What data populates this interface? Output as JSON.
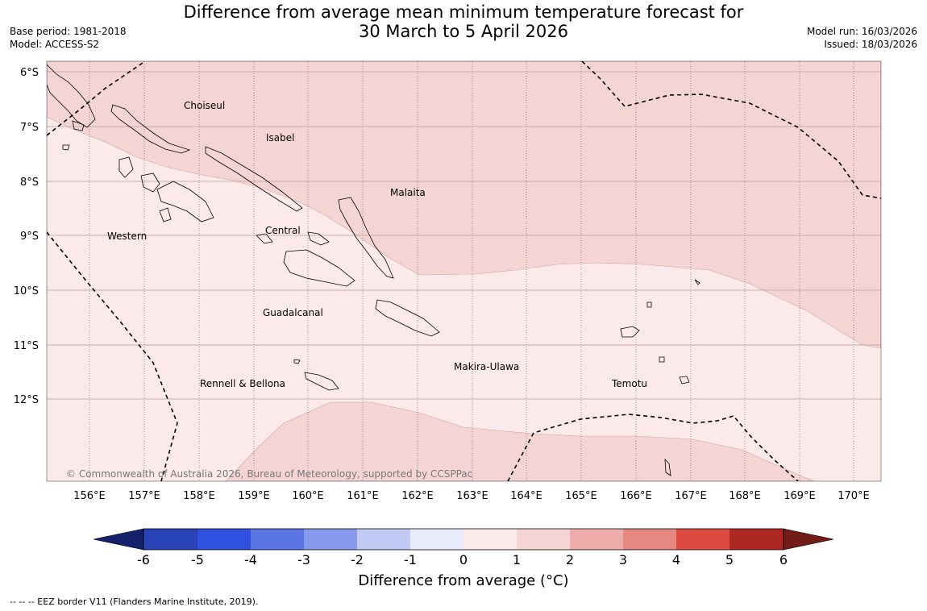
{
  "title": {
    "line1": "Difference from average mean minimum temperature forecast for",
    "line2": "30 March to 5 April 2026"
  },
  "meta_left": {
    "base_period": "Base period: 1981-2018",
    "model": "Model: ACCESS-S2"
  },
  "meta_right": {
    "model_run": "Model run: 16/03/2026",
    "issued": "Issued: 18/03/2026"
  },
  "map": {
    "lat_labels": [
      "6°S",
      "7°S",
      "8°S",
      "9°S",
      "10°S",
      "11°S",
      "12°S"
    ],
    "lon_labels": [
      "156°E",
      "157°E",
      "158°E",
      "159°E",
      "160°E",
      "161°E",
      "162°E",
      "163°E",
      "164°E",
      "165°E",
      "166°E",
      "167°E",
      "168°E",
      "169°E",
      "170°E"
    ],
    "regions": [
      {
        "name": "Choiseul"
      },
      {
        "name": "Isabel"
      },
      {
        "name": "Malaita"
      },
      {
        "name": "Western"
      },
      {
        "name": "Central"
      },
      {
        "name": "Guadalcanal"
      },
      {
        "name": "Makira-Ulawa"
      },
      {
        "name": "Temotu"
      },
      {
        "name": "Rennell & Bellona"
      }
    ],
    "copyright": "© Commonwealth of Australia 2026, Bureau of Meteorology, supported by CCSPPac",
    "colors": {
      "anomaly_0_1": "#fbeae9",
      "anomaly_1_2": "#f5d5d3"
    }
  },
  "colorbar": {
    "ticks": [
      "-6",
      "-5",
      "-4",
      "-3",
      "-2",
      "-1",
      "0",
      "1",
      "2",
      "3",
      "4",
      "5",
      "6"
    ],
    "colors": [
      "#15216a",
      "#2a44b8",
      "#3050e0",
      "#5b75e5",
      "#8699eb",
      "#c2caf4",
      "#e8ebfb",
      "#fbeae9",
      "#f5d5d3",
      "#eeadaa",
      "#e68882",
      "#dc4a40",
      "#ad2823",
      "#731c17"
    ],
    "label": "Difference from average (°C)"
  },
  "footnote": "--  --  -- EEZ border V11 (Flanders Marine Institute, 2019)."
}
